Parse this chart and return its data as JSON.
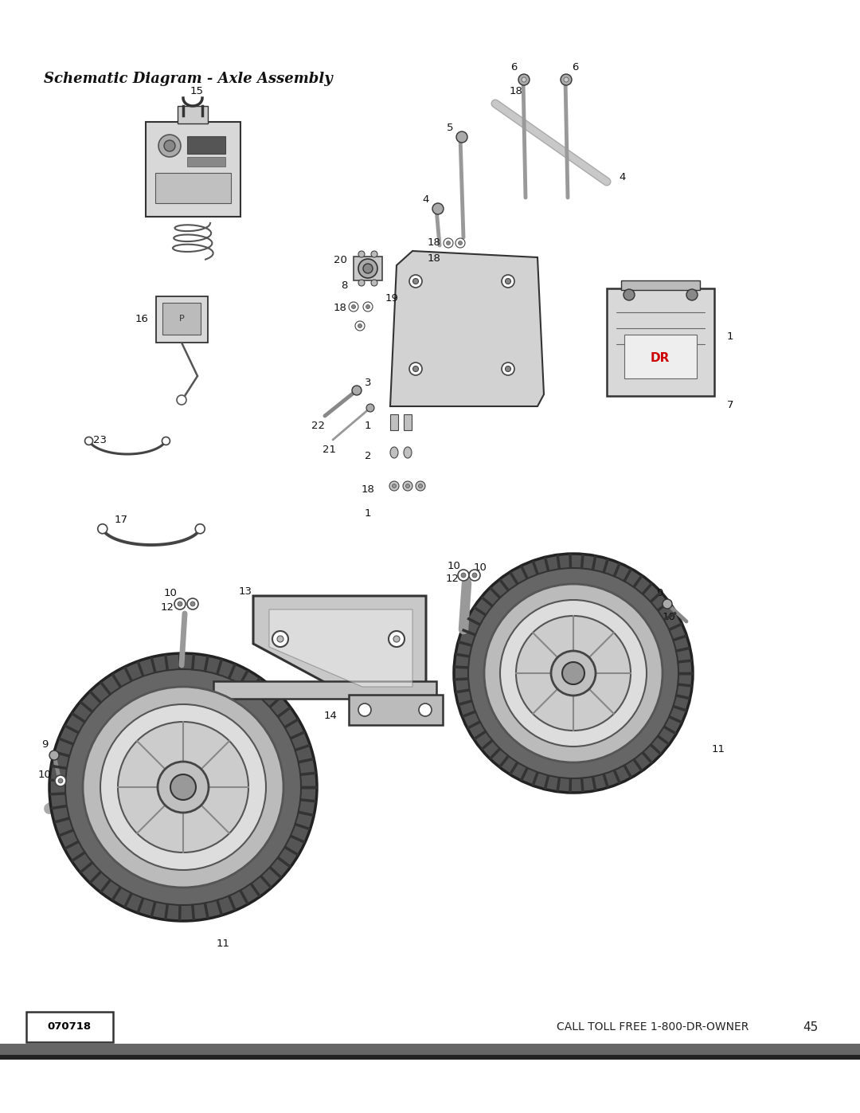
{
  "title": "Schematic Diagram - Axle Assembly",
  "title_fontsize": 13,
  "background_color": "#ffffff",
  "footer_text": "CALL TOLL FREE 1-800-DR-OWNER",
  "footer_page": "45",
  "footer_code": "070718",
  "bar_color_top": "#666666",
  "bar_color_bottom": "#222222",
  "fig_width": 10.8,
  "fig_height": 13.97
}
